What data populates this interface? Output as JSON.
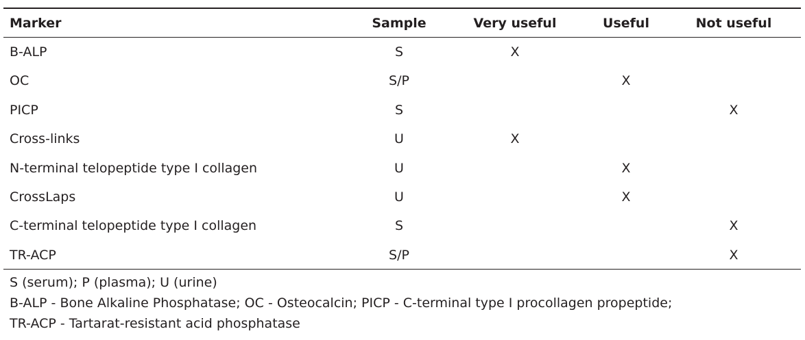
{
  "table": {
    "header": {
      "marker": "Marker",
      "sample": "Sample",
      "very_useful": "Very useful",
      "useful": "Useful",
      "not_useful": "Not useful"
    },
    "rows": [
      {
        "marker": "B-ALP",
        "sample": "S",
        "very_useful": "X"
      },
      {
        "marker": "OC",
        "sample": "S/P",
        "useful": "X"
      },
      {
        "marker": "PICP",
        "sample": "S",
        "not_useful": "X"
      },
      {
        "marker": "Cross-links",
        "sample": "U",
        "very_useful": "X"
      },
      {
        "marker": "N-terminal telopeptide type I collagen",
        "sample": "U",
        "useful": "X"
      },
      {
        "marker": "CrossLaps",
        "sample": "U",
        "useful": "X"
      },
      {
        "marker": "C-terminal telopeptide type I collagen",
        "sample": "S",
        "not_useful": "X"
      },
      {
        "marker": "TR-ACP",
        "sample": "S/P",
        "not_useful": "X"
      }
    ]
  },
  "footnotes": [
    "S (serum); P (plasma); U (urine)",
    "B-ALP - Bone Alkaline Phosphatase; OC - Osteocalcin; PICP - C-terminal type I procollagen propeptide;",
    "TR-ACP - Tartarat-resistant acid phosphatase"
  ]
}
